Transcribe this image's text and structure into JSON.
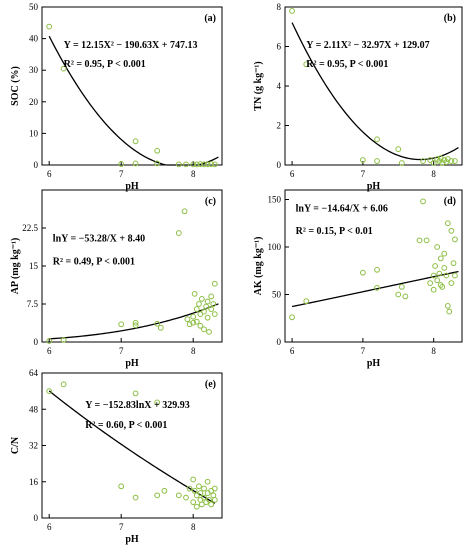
{
  "figure": {
    "point_color": "#8dbf44",
    "line_color": "#000000"
  },
  "chart_data": [
    {
      "type": "scatter",
      "panel": "(a)",
      "xlabel": "pH",
      "ylabel": "SOC (%)",
      "xlim": [
        5.9,
        8.4
      ],
      "ylim": [
        0,
        50
      ],
      "xticks": [
        6,
        7,
        8
      ],
      "yticks": [
        0,
        10,
        20,
        30,
        40,
        50
      ],
      "equation": "Y = 12.15X² − 190.63X + 747.13",
      "r2_text": "R² = 0.95, P < 0.001",
      "fit": {
        "kind": "poly2",
        "a": 12.15,
        "b": -190.63,
        "c": 747.13,
        "x_range": [
          6.0,
          8.35
        ]
      },
      "points": [
        [
          6.0,
          43.8
        ],
        [
          6.2,
          30.5
        ],
        [
          7.0,
          0.3
        ],
        [
          7.2,
          0.5
        ],
        [
          7.2,
          7.5
        ],
        [
          7.5,
          4.5
        ],
        [
          7.5,
          0.5
        ],
        [
          7.8,
          0.2
        ],
        [
          7.9,
          0.2
        ],
        [
          8.0,
          0.2
        ],
        [
          8.05,
          0.2
        ],
        [
          8.1,
          0.3
        ],
        [
          8.15,
          0.2
        ],
        [
          8.2,
          0.2
        ],
        [
          8.25,
          0.3
        ],
        [
          8.3,
          0.2
        ]
      ]
    },
    {
      "type": "scatter",
      "panel": "(b)",
      "xlabel": "pH",
      "ylabel": "TN (g kg⁻¹)",
      "xlim": [
        5.9,
        8.4
      ],
      "ylim": [
        0,
        8
      ],
      "xticks": [
        6,
        7,
        8
      ],
      "yticks": [
        0,
        2,
        4,
        6,
        8
      ],
      "equation": "Y = 2.11X² − 32.97X + 129.07",
      "r2_text": "R² = 0.95, P < 0.001",
      "fit": {
        "kind": "poly2",
        "a": 2.11,
        "b": -32.97,
        "c": 129.07,
        "x_range": [
          6.0,
          8.35
        ]
      },
      "points": [
        [
          6.0,
          7.8
        ],
        [
          6.2,
          5.1
        ],
        [
          7.0,
          0.25
        ],
        [
          7.2,
          1.3
        ],
        [
          7.2,
          0.2
        ],
        [
          7.5,
          0.8
        ],
        [
          7.55,
          0.1
        ],
        [
          7.85,
          0.2
        ],
        [
          7.95,
          0.25
        ],
        [
          8.0,
          0.1
        ],
        [
          8.05,
          0.3
        ],
        [
          8.08,
          0.2
        ],
        [
          8.1,
          0.35
        ],
        [
          8.12,
          0.1
        ],
        [
          8.15,
          0.25
        ],
        [
          8.18,
          0.15
        ],
        [
          8.2,
          0.3
        ],
        [
          8.25,
          0.2
        ],
        [
          8.3,
          0.2
        ]
      ]
    },
    {
      "type": "scatter",
      "panel": "(c)",
      "xlabel": "pH",
      "ylabel": "AP (mg kg⁻¹)",
      "xlim": [
        5.9,
        8.4
      ],
      "ylim": [
        0,
        30
      ],
      "xticks": [
        6,
        7,
        8
      ],
      "yticks": [
        0,
        7.5,
        15,
        22.5
      ],
      "ytick_labels": [
        "0",
        "7.5",
        "15",
        "22.5"
      ],
      "equation": "lnY = −53.28/X + 8.40",
      "r2_text": "R² = 0.49, P < 0.001",
      "fit": {
        "kind": "exp_inv",
        "a": -53.28,
        "b": 8.4,
        "x_range": [
          6.0,
          8.35
        ]
      },
      "points": [
        [
          6.0,
          0.2
        ],
        [
          6.2,
          0.4
        ],
        [
          7.0,
          3.5
        ],
        [
          7.2,
          3.8
        ],
        [
          7.2,
          3.3
        ],
        [
          7.5,
          3.6
        ],
        [
          7.55,
          2.8
        ],
        [
          7.8,
          21.5
        ],
        [
          7.88,
          25.8
        ],
        [
          7.92,
          4.5
        ],
        [
          7.95,
          3.5
        ],
        [
          8.0,
          5.0
        ],
        [
          8.0,
          3.8
        ],
        [
          8.02,
          9.5
        ],
        [
          8.05,
          6.5
        ],
        [
          8.05,
          4.0
        ],
        [
          8.08,
          7.5
        ],
        [
          8.1,
          5.5
        ],
        [
          8.1,
          3.2
        ],
        [
          8.12,
          8.5
        ],
        [
          8.15,
          6.0
        ],
        [
          8.15,
          2.5
        ],
        [
          8.18,
          7.0
        ],
        [
          8.2,
          8.0
        ],
        [
          8.2,
          4.8
        ],
        [
          8.22,
          2.0
        ],
        [
          8.25,
          6.5
        ],
        [
          8.25,
          9.0
        ],
        [
          8.28,
          7.5
        ],
        [
          8.3,
          11.5
        ],
        [
          8.3,
          5.5
        ]
      ]
    },
    {
      "type": "scatter",
      "panel": "(d)",
      "xlabel": "pH",
      "ylabel": "AK (mg kg⁻¹)",
      "xlim": [
        5.9,
        8.4
      ],
      "ylim": [
        0,
        160
      ],
      "xticks": [
        6,
        7,
        8
      ],
      "yticks": [
        0,
        50,
        100,
        150
      ],
      "equation": "lnY = −14.64/X + 6.06",
      "r2_text": "R² = 0.15, P < 0.01",
      "fit": {
        "kind": "exp_inv",
        "a": -14.64,
        "b": 6.06,
        "x_range": [
          6.0,
          8.35
        ]
      },
      "points": [
        [
          6.0,
          26
        ],
        [
          6.2,
          43
        ],
        [
          7.0,
          73
        ],
        [
          7.2,
          57
        ],
        [
          7.2,
          76
        ],
        [
          7.5,
          50
        ],
        [
          7.55,
          58
        ],
        [
          7.6,
          48
        ],
        [
          7.8,
          107
        ],
        [
          7.85,
          148
        ],
        [
          7.9,
          107
        ],
        [
          7.95,
          62
        ],
        [
          8.0,
          70
        ],
        [
          8.0,
          55
        ],
        [
          8.02,
          80
        ],
        [
          8.05,
          65
        ],
        [
          8.05,
          100
        ],
        [
          8.08,
          72
        ],
        [
          8.1,
          60
        ],
        [
          8.1,
          88
        ],
        [
          8.12,
          58
        ],
        [
          8.15,
          78
        ],
        [
          8.15,
          93
        ],
        [
          8.18,
          70
        ],
        [
          8.2,
          125
        ],
        [
          8.2,
          38
        ],
        [
          8.22,
          32
        ],
        [
          8.25,
          117
        ],
        [
          8.25,
          62
        ],
        [
          8.28,
          83
        ],
        [
          8.3,
          108
        ],
        [
          8.3,
          70
        ]
      ]
    },
    {
      "type": "scatter",
      "panel": "(e)",
      "xlabel": "pH",
      "ylabel": "C/N",
      "xlim": [
        5.9,
        8.4
      ],
      "ylim": [
        0,
        64
      ],
      "xticks": [
        6,
        7,
        8
      ],
      "yticks": [
        0,
        16,
        32,
        48,
        64
      ],
      "equation": "Y = −152.83lnX + 329.93",
      "r2_text": "R² = 0.60, P < 0.001",
      "fit": {
        "kind": "log",
        "a": -152.83,
        "b": 329.93,
        "x_range": [
          6.0,
          8.3
        ]
      },
      "points": [
        [
          6.0,
          56
        ],
        [
          6.2,
          59
        ],
        [
          7.0,
          14
        ],
        [
          7.2,
          55
        ],
        [
          7.2,
          9
        ],
        [
          7.5,
          51
        ],
        [
          7.5,
          10
        ],
        [
          7.6,
          12
        ],
        [
          7.8,
          10
        ],
        [
          7.9,
          9
        ],
        [
          7.95,
          13
        ],
        [
          8.0,
          17
        ],
        [
          8.0,
          7
        ],
        [
          8.02,
          12
        ],
        [
          8.05,
          10
        ],
        [
          8.05,
          5
        ],
        [
          8.08,
          14
        ],
        [
          8.1,
          8
        ],
        [
          8.1,
          11
        ],
        [
          8.12,
          6
        ],
        [
          8.15,
          13
        ],
        [
          8.15,
          9
        ],
        [
          8.18,
          7
        ],
        [
          8.2,
          16
        ],
        [
          8.2,
          11
        ],
        [
          8.22,
          8
        ],
        [
          8.25,
          12
        ],
        [
          8.25,
          6
        ],
        [
          8.28,
          10
        ],
        [
          8.3,
          13
        ],
        [
          8.3,
          8
        ]
      ]
    }
  ]
}
